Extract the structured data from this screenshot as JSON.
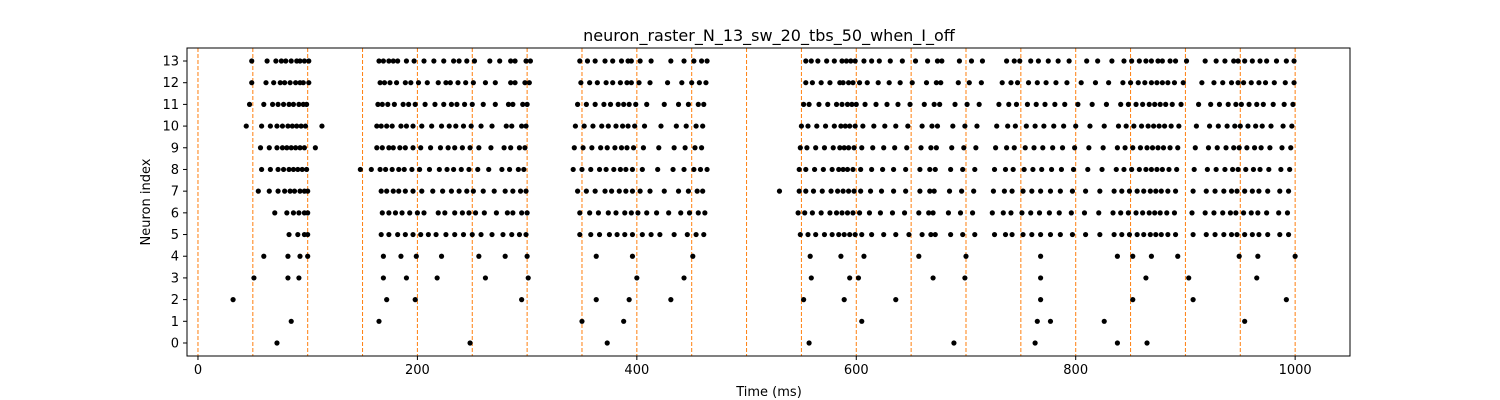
{
  "chart_data": {
    "type": "scatter",
    "title": "neuron_raster_N_13_sw_20_tbs_50_when_I_off",
    "xlabel": "Time (ms)",
    "ylabel": "Neuron index",
    "xlim": [
      -10,
      1050
    ],
    "ylim": [
      -0.6,
      13.6
    ],
    "xticks": [
      0,
      200,
      400,
      600,
      800,
      1000
    ],
    "yticks": [
      0,
      1,
      2,
      3,
      4,
      5,
      6,
      7,
      8,
      9,
      10,
      11,
      12,
      13
    ],
    "grid": false,
    "marker_color": "#000000",
    "vline_color": "#ff7f0e",
    "vlines": [
      0,
      50,
      100,
      150,
      200,
      250,
      300,
      350,
      400,
      450,
      500,
      550,
      600,
      650,
      700,
      750,
      800,
      850,
      900,
      950,
      1000
    ],
    "series": [
      {
        "neuron": 13,
        "times": [
          49,
          63,
          71,
          76,
          80,
          85,
          90,
          93,
          97,
          101,
          165,
          169,
          174,
          178,
          182,
          190,
          197,
          206,
          215,
          224,
          233,
          238,
          245,
          252,
          266,
          275,
          285,
          289,
          299,
          303,
          348,
          355,
          362,
          371,
          378,
          386,
          392,
          395,
          403,
          413,
          431,
          443,
          452,
          459,
          464,
          554,
          559,
          565,
          573,
          580,
          587,
          591,
          595,
          599,
          607,
          614,
          621,
          631,
          642,
          654,
          665,
          674,
          678,
          694,
          705,
          715,
          737,
          744,
          749,
          759,
          766,
          775,
          784,
          794,
          810,
          820,
          833,
          844,
          851,
          858,
          864,
          869,
          875,
          879,
          886,
          891,
          901,
          918,
          928,
          936,
          944,
          948,
          954,
          961,
          968,
          974,
          983,
          992,
          999
        ]
      },
      {
        "neuron": 12,
        "times": [
          49,
          62,
          69,
          75,
          79,
          84,
          89,
          93,
          96,
          101,
          166,
          170,
          175,
          181,
          189,
          194,
          201,
          209,
          219,
          226,
          230,
          237,
          244,
          251,
          262,
          271,
          285,
          289,
          298,
          302,
          349,
          357,
          364,
          372,
          378,
          385,
          391,
          395,
          402,
          412,
          428,
          441,
          450,
          457,
          463,
          554,
          560,
          568,
          576,
          585,
          588,
          593,
          597,
          603,
          610,
          620,
          630,
          640,
          651,
          664,
          673,
          677,
          693,
          703,
          714,
          733,
          741,
          747,
          757,
          765,
          773,
          782,
          792,
          805,
          818,
          830,
          843,
          850,
          857,
          863,
          869,
          874,
          879,
          884,
          890,
          898,
          915,
          926,
          934,
          942,
          948,
          953,
          960,
          967,
          973,
          981,
          991,
          999
        ]
      },
      {
        "neuron": 11,
        "times": [
          47,
          60,
          68,
          73,
          78,
          83,
          87,
          92,
          96,
          99,
          164,
          168,
          173,
          179,
          187,
          192,
          198,
          207,
          216,
          224,
          231,
          236,
          243,
          250,
          260,
          271,
          283,
          287,
          296,
          300,
          346,
          354,
          362,
          370,
          376,
          383,
          388,
          393,
          399,
          409,
          425,
          438,
          447,
          456,
          461,
          552,
          557,
          566,
          574,
          582,
          587,
          592,
          596,
          600,
          608,
          618,
          628,
          638,
          649,
          662,
          671,
          676,
          690,
          701,
          712,
          730,
          739,
          746,
          756,
          764,
          772,
          781,
          790,
          802,
          815,
          828,
          841,
          848,
          855,
          861,
          867,
          872,
          877,
          882,
          888,
          896,
          912,
          923,
          931,
          939,
          946,
          951,
          958,
          965,
          971,
          980,
          990,
          998
        ]
      },
      {
        "neuron": 10,
        "times": [
          44,
          58,
          66,
          72,
          77,
          82,
          86,
          90,
          94,
          98,
          113,
          163,
          167,
          172,
          177,
          185,
          190,
          196,
          204,
          213,
          222,
          229,
          235,
          242,
          249,
          258,
          268,
          281,
          286,
          295,
          299,
          344,
          352,
          360,
          368,
          374,
          381,
          387,
          392,
          398,
          407,
          422,
          436,
          445,
          454,
          460,
          550,
          556,
          564,
          572,
          580,
          586,
          590,
          594,
          599,
          606,
          616,
          626,
          636,
          647,
          660,
          669,
          674,
          688,
          699,
          710,
          728,
          738,
          745,
          755,
          763,
          771,
          780,
          789,
          800,
          813,
          826,
          839,
          846,
          853,
          860,
          866,
          871,
          876,
          881,
          887,
          894,
          910,
          922,
          930,
          938,
          945,
          950,
          957,
          964,
          970,
          978,
          989,
          997
        ]
      },
      {
        "neuron": 9,
        "times": [
          57,
          65,
          72,
          77,
          81,
          85,
          89,
          93,
          97,
          107,
          163,
          168,
          174,
          178,
          184,
          189,
          196,
          203,
          212,
          221,
          228,
          234,
          241,
          248,
          256,
          267,
          279,
          285,
          293,
          298,
          343,
          351,
          359,
          367,
          373,
          380,
          386,
          391,
          397,
          406,
          420,
          434,
          444,
          453,
          459,
          549,
          555,
          563,
          571,
          579,
          585,
          589,
          593,
          598,
          605,
          615,
          625,
          635,
          646,
          659,
          668,
          673,
          687,
          698,
          709,
          727,
          737,
          744,
          754,
          762,
          770,
          779,
          788,
          799,
          812,
          825,
          838,
          845,
          852,
          859,
          865,
          870,
          875,
          880,
          886,
          893,
          909,
          921,
          929,
          937,
          944,
          949,
          956,
          963,
          969,
          977,
          988,
          996
        ]
      },
      {
        "neuron": 8,
        "times": [
          58,
          66,
          73,
          78,
          83,
          87,
          91,
          95,
          99,
          148,
          158,
          166,
          171,
          177,
          183,
          188,
          195,
          202,
          211,
          220,
          227,
          233,
          240,
          247,
          255,
          265,
          277,
          284,
          292,
          297,
          342,
          350,
          358,
          366,
          372,
          379,
          385,
          390,
          396,
          405,
          419,
          433,
          443,
          452,
          458,
          464,
          548,
          554,
          562,
          570,
          578,
          584,
          588,
          592,
          597,
          604,
          614,
          624,
          634,
          645,
          658,
          667,
          672,
          686,
          697,
          708,
          726,
          736,
          743,
          753,
          761,
          769,
          778,
          787,
          798,
          811,
          824,
          837,
          844,
          851,
          858,
          864,
          869,
          874,
          879,
          885,
          892,
          908,
          920,
          928,
          936,
          943,
          948,
          955,
          962,
          968,
          976,
          987,
          995
        ]
      },
      {
        "neuron": 7,
        "times": [
          55,
          65,
          73,
          79,
          84,
          88,
          93,
          97,
          100,
          167,
          172,
          178,
          183,
          189,
          196,
          204,
          214,
          223,
          231,
          238,
          245,
          251,
          260,
          270,
          280,
          287,
          294,
          299,
          346,
          354,
          362,
          371,
          377,
          384,
          390,
          396,
          403,
          412,
          425,
          438,
          447,
          455,
          460,
          530,
          548,
          554,
          561,
          569,
          577,
          583,
          588,
          593,
          598,
          604,
          613,
          623,
          634,
          645,
          658,
          667,
          671,
          685,
          696,
          707,
          725,
          735,
          742,
          752,
          760,
          768,
          777,
          786,
          797,
          809,
          822,
          835,
          842,
          849,
          856,
          862,
          868,
          873,
          878,
          884,
          891,
          907,
          919,
          927,
          935,
          942,
          947,
          954,
          961,
          967,
          975,
          986,
          994
        ]
      },
      {
        "neuron": 6,
        "times": [
          70,
          81,
          87,
          92,
          97,
          100,
          168,
          174,
          180,
          186,
          193,
          200,
          206,
          219,
          225,
          234,
          241,
          247,
          253,
          261,
          272,
          282,
          287,
          295,
          300,
          348,
          357,
          365,
          374,
          381,
          389,
          395,
          401,
          409,
          418,
          429,
          440,
          448,
          456,
          462,
          547,
          553,
          560,
          568,
          576,
          582,
          587,
          592,
          597,
          603,
          612,
          622,
          633,
          644,
          657,
          666,
          670,
          684,
          695,
          706,
          724,
          734,
          741,
          751,
          759,
          767,
          776,
          785,
          796,
          808,
          821,
          834,
          841,
          848,
          855,
          861,
          867,
          872,
          877,
          883,
          890,
          906,
          918,
          926,
          934,
          941,
          946,
          953,
          960,
          966,
          974,
          985,
          993
        ]
      },
      {
        "neuron": 5,
        "times": [
          83,
          91,
          97,
          100,
          167,
          174,
          182,
          189,
          196,
          203,
          210,
          217,
          226,
          234,
          242,
          250,
          258,
          268,
          278,
          286,
          293,
          299,
          348,
          358,
          366,
          375,
          382,
          389,
          396,
          405,
          413,
          421,
          434,
          446,
          454,
          461,
          549,
          556,
          563,
          571,
          578,
          584,
          589,
          594,
          599,
          605,
          614,
          625,
          636,
          648,
          660,
          668,
          672,
          686,
          697,
          708,
          726,
          736,
          742,
          752,
          760,
          768,
          777,
          786,
          797,
          809,
          822,
          835,
          842,
          849,
          856,
          862,
          868,
          873,
          878,
          884,
          891,
          907,
          919,
          927,
          935,
          942,
          947,
          954,
          961,
          967,
          975,
          986,
          994
        ]
      },
      {
        "neuron": 4,
        "times": [
          60,
          82,
          93,
          100,
          169,
          185,
          199,
          222,
          256,
          280,
          300,
          363,
          396,
          451,
          558,
          586,
          607,
          657,
          700,
          768,
          838,
          852,
          869,
          893,
          949,
          966,
          1000
        ]
      },
      {
        "neuron": 3,
        "times": [
          51,
          82,
          92,
          169,
          190,
          218,
          262,
          301,
          400,
          443,
          559,
          594,
          602,
          670,
          699,
          768,
          864,
          903,
          965
        ]
      },
      {
        "neuron": 2,
        "times": [
          32,
          172,
          198,
          295,
          363,
          393,
          431,
          552,
          589,
          636,
          768,
          852,
          907,
          992
        ]
      },
      {
        "neuron": 1,
        "times": [
          85,
          165,
          350,
          388,
          605,
          765,
          777,
          826,
          954
        ]
      },
      {
        "neuron": 0,
        "times": [
          72,
          248,
          373,
          557,
          689,
          763,
          838,
          865
        ]
      }
    ]
  }
}
